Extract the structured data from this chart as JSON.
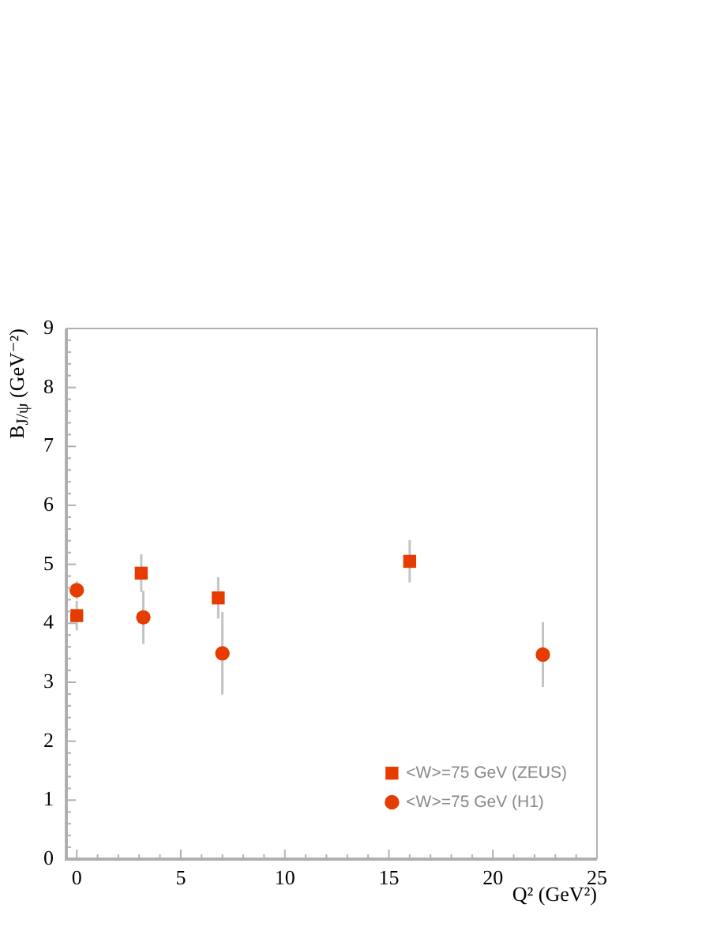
{
  "chart_data": {
    "type": "scatter",
    "xlabel": "Q² (GeV²)",
    "ylabel": "B$_{J/ψ}$ (GeV⁻²)",
    "xlim": [
      -0.5,
      25
    ],
    "xticks": [
      0,
      {
        "value": 1,
        "label": null
      },
      {
        "value": 2,
        "label": null
      },
      {
        "value": 3,
        "label": null
      },
      {
        "value": 4,
        "label": null
      },
      5,
      {
        "value": 6,
        "label": null
      },
      {
        "value": 7,
        "label": null
      },
      {
        "value": 8,
        "label": null
      },
      {
        "value": 9,
        "label": null
      },
      10,
      {
        "value": 11,
        "label": null
      },
      {
        "value": 12,
        "label": null
      },
      {
        "value": 13,
        "label": null
      },
      {
        "value": 14,
        "label": null
      },
      15,
      {
        "value": 16,
        "label": null
      },
      {
        "value": 17,
        "label": null
      },
      {
        "value": 18,
        "label": null
      },
      {
        "value": 19,
        "label": null
      },
      20,
      {
        "value": 21,
        "label": null
      },
      {
        "value": 22,
        "label": null
      },
      {
        "value": 23,
        "label": null
      },
      {
        "value": 24,
        "label": null
      },
      25
    ],
    "ylim": [
      0,
      9
    ],
    "yticks": [
      0,
      {
        "value": 0.2,
        "label": null
      },
      {
        "value": 0.4,
        "label": null
      },
      {
        "value": 0.6,
        "label": null
      },
      {
        "value": 0.8,
        "label": null
      },
      1,
      {
        "value": 1.2,
        "label": null
      },
      {
        "value": 1.4,
        "label": null
      },
      {
        "value": 1.6,
        "label": null
      },
      {
        "value": 1.8,
        "label": null
      },
      2,
      {
        "value": 2.2,
        "label": null
      },
      {
        "value": 2.4,
        "label": null
      },
      {
        "value": 2.6,
        "label": null
      },
      {
        "value": 2.8,
        "label": null
      },
      3,
      {
        "value": 3.2,
        "label": null
      },
      {
        "value": 3.4,
        "label": null
      },
      {
        "value": 3.6,
        "label": null
      },
      {
        "value": 3.8,
        "label": null
      },
      4,
      {
        "value": 4.2,
        "label": null
      },
      {
        "value": 4.4,
        "label": null
      },
      {
        "value": 4.6,
        "label": null
      },
      {
        "value": 4.8,
        "label": null
      },
      5,
      {
        "value": 5.2,
        "label": null
      },
      {
        "value": 5.4,
        "label": null
      },
      {
        "value": 5.6,
        "label": null
      },
      {
        "value": 5.8,
        "label": null
      },
      6,
      {
        "value": 6.2,
        "label": null
      },
      {
        "value": 6.4,
        "label": null
      },
      {
        "value": 6.6,
        "label": null
      },
      {
        "value": 6.8,
        "label": null
      },
      7,
      {
        "value": 7.2,
        "label": null
      },
      {
        "value": 7.4,
        "label": null
      },
      {
        "value": 7.6,
        "label": null
      },
      {
        "value": 7.8,
        "label": null
      },
      8,
      {
        "value": 8.2,
        "label": null
      },
      {
        "value": 8.4,
        "label": null
      },
      {
        "value": 8.6,
        "label": null
      },
      {
        "value": 8.8,
        "label": null
      },
      9
    ],
    "legend": "bottom right",
    "series": [
      {
        "name": "<W>=75 GeV (ZEUS)",
        "color": "#e63c00",
        "marker": "square",
        "x": [
          0,
          3.1,
          6.8,
          16
        ],
        "values": [
          4.13,
          4.85,
          4.43,
          5.05
        ],
        "errors": [
          0.25,
          0.32,
          0.35,
          0.36
        ]
      },
      {
        "name": "<W>=75 GeV (H1)",
        "color": "#e63c00",
        "marker": "circle",
        "x": [
          0,
          3.2,
          7,
          22.4
        ],
        "values": [
          4.56,
          4.1,
          3.49,
          3.47
        ],
        "errors": [
          0.15,
          0.45,
          0.7,
          0.55
        ]
      }
    ]
  }
}
